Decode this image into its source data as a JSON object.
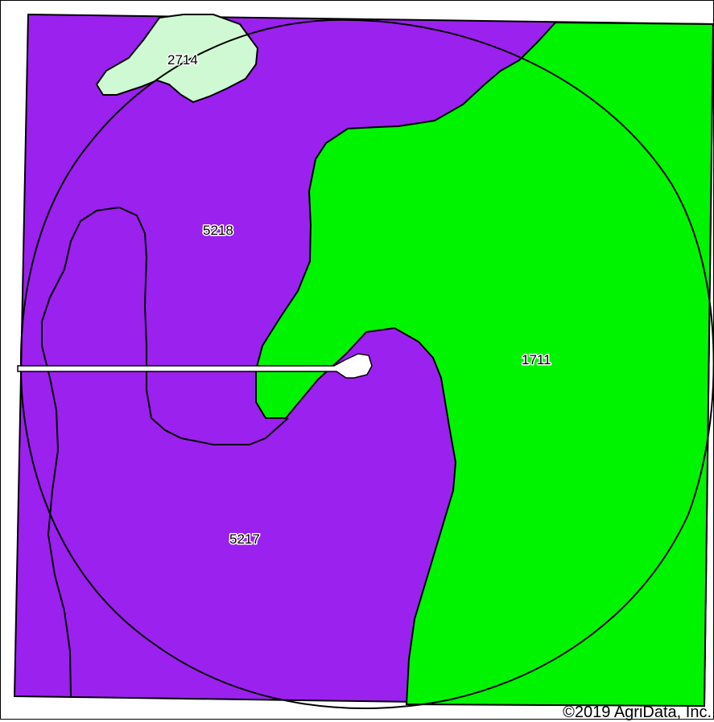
{
  "map": {
    "colors": {
      "unit_5218_5217": "#9b21ee",
      "unit_1711": "#00f400",
      "unit_2714": "#cff9d2",
      "boundary": "#000000",
      "road": "#ffffff"
    },
    "soil_units": [
      {
        "id": "2714",
        "label": "2714"
      },
      {
        "id": "5218",
        "label": "5218"
      },
      {
        "id": "1711",
        "label": "1711"
      },
      {
        "id": "5217",
        "label": "5217"
      }
    ],
    "copyright": "©2019 AgriData, Inc."
  }
}
